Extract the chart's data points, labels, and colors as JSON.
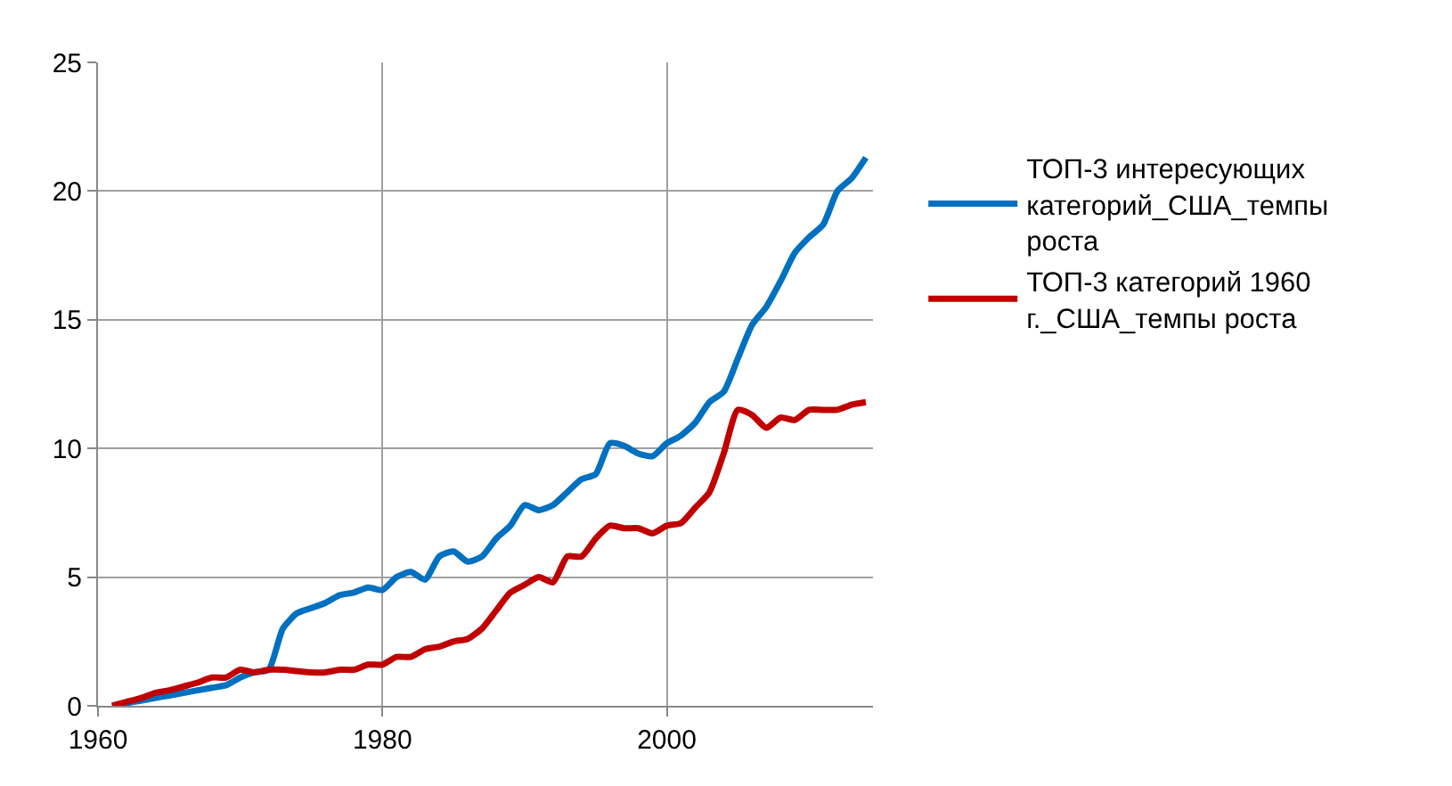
{
  "chart_data": {
    "type": "line",
    "x": [
      1961,
      1962,
      1963,
      1964,
      1965,
      1966,
      1967,
      1968,
      1969,
      1970,
      1971,
      1972,
      1973,
      1974,
      1975,
      1976,
      1977,
      1978,
      1979,
      1980,
      1981,
      1982,
      1983,
      1984,
      1985,
      1986,
      1987,
      1988,
      1989,
      1990,
      1991,
      1992,
      1993,
      1994,
      1995,
      1996,
      1997,
      1998,
      1999,
      2000,
      2001,
      2002,
      2003,
      2004,
      2005,
      2006,
      2007,
      2008,
      2009,
      2010,
      2011,
      2012,
      2013,
      2014
    ],
    "series": [
      {
        "name": "ТОП-3 интересующих категорий_США_темпы роста",
        "color": "#0070c0",
        "values": [
          0,
          0.1,
          0.2,
          0.3,
          0.4,
          0.5,
          0.6,
          0.7,
          0.8,
          1.1,
          1.3,
          1.4,
          3.0,
          3.6,
          3.8,
          4.0,
          4.3,
          4.4,
          4.6,
          4.5,
          5.0,
          5.2,
          4.9,
          5.8,
          6.0,
          5.6,
          5.8,
          6.5,
          7.0,
          7.8,
          7.6,
          7.8,
          8.3,
          8.8,
          9.0,
          10.2,
          10.1,
          9.8,
          9.7,
          10.2,
          10.5,
          11.0,
          11.8,
          12.2,
          13.5,
          14.8,
          15.5,
          16.5,
          17.6,
          18.2,
          18.7,
          20.0,
          20.5,
          21.3
        ]
      },
      {
        "name": "ТОП-3 категорий 1960 г._США_темпы роста",
        "color": "#c00000",
        "values": [
          0,
          0.15,
          0.3,
          0.5,
          0.6,
          0.75,
          0.9,
          1.1,
          1.1,
          1.4,
          1.3,
          1.4,
          1.4,
          1.35,
          1.3,
          1.3,
          1.4,
          1.4,
          1.6,
          1.6,
          1.9,
          1.9,
          2.2,
          2.3,
          2.5,
          2.6,
          3.0,
          3.7,
          4.4,
          4.7,
          5.0,
          4.8,
          5.8,
          5.8,
          6.5,
          7.0,
          6.9,
          6.9,
          6.7,
          7.0,
          7.1,
          7.7,
          8.3,
          9.8,
          11.5,
          11.3,
          10.8,
          11.2,
          11.1,
          11.5,
          11.5,
          11.5,
          11.7,
          11.8
        ]
      }
    ],
    "xlim": [
      1960,
      2014.5
    ],
    "xticks": [
      1960,
      1980,
      2000
    ],
    "ylim": [
      0,
      25
    ],
    "yticks": [
      0,
      5,
      10,
      15,
      20,
      25
    ],
    "grid": true,
    "legend": "right",
    "marker": "none",
    "line_style": "solid"
  }
}
